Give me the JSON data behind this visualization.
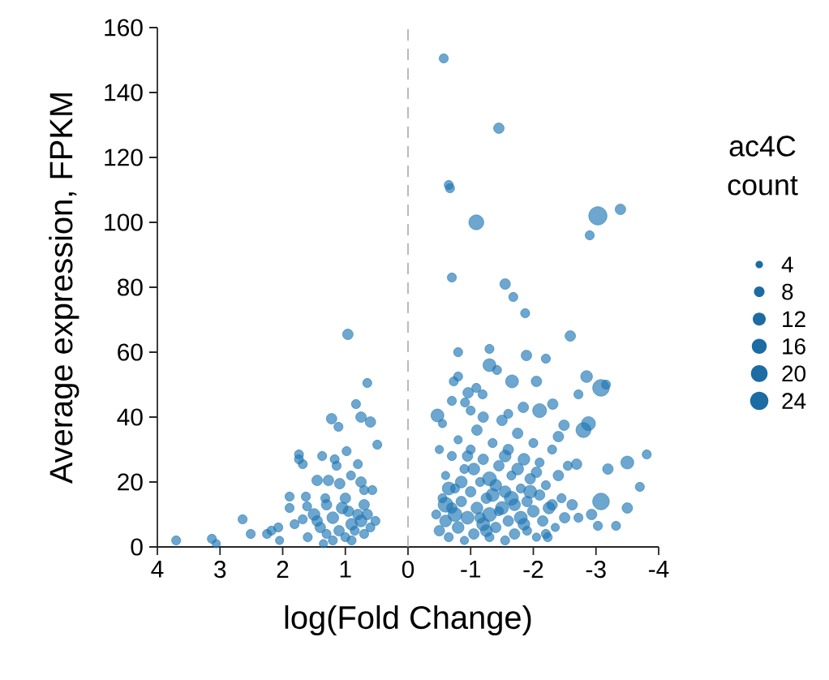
{
  "chart_data": {
    "type": "bubble",
    "xlabel": "log(Fold Change)",
    "ylabel": "Average expression, FPKM",
    "legend_title": "ac4C count",
    "size_legend": [
      4,
      8,
      12,
      16,
      20,
      24
    ],
    "xlim": [
      4,
      -4
    ],
    "xticks": [
      4,
      3,
      2,
      1,
      0,
      -1,
      -2,
      -3,
      -4
    ],
    "ylim": [
      0,
      160
    ],
    "yticks": [
      0,
      20,
      40,
      60,
      80,
      100,
      120,
      140,
      160
    ],
    "ref_lines": [
      {
        "axis": "x",
        "value": 0,
        "color": "#aaaaaa",
        "line_style": "dashed"
      }
    ],
    "series": [
      {
        "color": "#1f77b4",
        "x": [
          3.7,
          3.13,
          3.06,
          2.64,
          2.51,
          2.25,
          2.18,
          2.07,
          2.05,
          1.89,
          1.89,
          1.81,
          1.74,
          1.74,
          1.68,
          1.63,
          1.68,
          1.61,
          1.45,
          1.37,
          1.32,
          1.22,
          1.11,
          1.17,
          1.14,
          1.27,
          1.09,
          0.98,
          0.96,
          0.91,
          0.83,
          0.8,
          0.75,
          0.65,
          0.6,
          0.49,
          0.75,
          0.7,
          0.57,
          0.52,
          1.5,
          1.4,
          1.3,
          1.2,
          1.1,
          1.0,
          0.9,
          0.8,
          0.7,
          1.45,
          1.3,
          1.05,
          0.95,
          0.85,
          0.75,
          0.6,
          1.2,
          0.9,
          1.35,
          1.6,
          1.0,
          0.7,
          0.65,
          -0.57,
          -1.45,
          -0.65,
          -0.67,
          -1.09,
          -3.03,
          -3.39,
          -2.9,
          -0.7,
          -1.55,
          -1.68,
          -1.87,
          -2.59,
          -0.8,
          -1.3,
          -1.3,
          -1.42,
          -1.89,
          -2.2,
          -1.66,
          -2.05,
          -2.85,
          -3.08,
          -3.16,
          -2.72,
          -0.73,
          -0.8,
          -0.96,
          -1.19,
          -1.09,
          -0.7,
          -0.91,
          -0.47,
          -1.84,
          -2.1,
          -2.31,
          -2.49,
          -2.88,
          -2.8,
          -3.81,
          -3.5,
          -3.19,
          -3.7,
          -3.08,
          -3.5,
          -2.93,
          -3.03,
          -3.32,
          -2.69,
          -2.72,
          -2.23,
          -2.62,
          -0.45,
          -0.5,
          -0.55,
          -0.6,
          -0.6,
          -0.65,
          -0.7,
          -0.7,
          -0.75,
          -0.8,
          -0.8,
          -0.85,
          -0.9,
          -0.9,
          -0.95,
          -1.0,
          -1.0,
          -1.05,
          -1.1,
          -1.1,
          -1.15,
          -1.2,
          -1.2,
          -1.25,
          -1.3,
          -1.3,
          -1.35,
          -1.4,
          -1.4,
          -1.45,
          -1.5,
          -1.5,
          -1.55,
          -1.55,
          -1.6,
          -1.6,
          -1.65,
          -1.7,
          -1.7,
          -1.75,
          -1.8,
          -1.8,
          -1.85,
          -1.9,
          -1.9,
          -1.95,
          -2.0,
          -2.0,
          -2.05,
          -2.1,
          -2.1,
          -2.15,
          -2.2,
          -2.25,
          -2.3,
          -2.35,
          -2.4,
          -2.45,
          -2.5,
          -2.55,
          -0.5,
          -0.55,
          -0.65,
          -0.75,
          -0.85,
          -0.95,
          -1.05,
          -1.15,
          -1.25,
          -1.35,
          -1.45,
          -1.55,
          -1.65,
          -1.75,
          -1.85,
          -1.95,
          -2.05,
          -2.2,
          -2.3,
          -2.4,
          -1.2,
          -1.0,
          -1.6,
          -0.6,
          -1.3
        ],
        "values": [
          2,
          2.5,
          1,
          8.5,
          4,
          4,
          5,
          6,
          2,
          15.5,
          12,
          7,
          28.5,
          27,
          25.5,
          15.5,
          8.5,
          12.5,
          20.5,
          28,
          15,
          39.5,
          37,
          27,
          25,
          20.5,
          19.5,
          29.5,
          65.5,
          22,
          44,
          25.5,
          40,
          50.5,
          38.5,
          31.5,
          20,
          17.5,
          17.5,
          8,
          10,
          6,
          4,
          9,
          5,
          3,
          7,
          10,
          4,
          8,
          13,
          12,
          11,
          5,
          8,
          6,
          2,
          2,
          1,
          3,
          15,
          13,
          10,
          150.5,
          129,
          111.5,
          110.5,
          100,
          102,
          104,
          96,
          83,
          81,
          77,
          72,
          65,
          60,
          61,
          56,
          54.5,
          59,
          58,
          51,
          51,
          52.5,
          49,
          50,
          47,
          51,
          52.5,
          47.5,
          47,
          49,
          45,
          44.5,
          40.5,
          43,
          42,
          44,
          37.5,
          38,
          36,
          28.5,
          26,
          24,
          18.5,
          14,
          12,
          10,
          6.5,
          6.5,
          25.5,
          9,
          3,
          13,
          10,
          5,
          15,
          22,
          8,
          3,
          12,
          28,
          18,
          6,
          33,
          14,
          2,
          24,
          9,
          17,
          30,
          4,
          12,
          36,
          20,
          7,
          27,
          15,
          3,
          10,
          32,
          19,
          6,
          25,
          12,
          39,
          2,
          17,
          8,
          30,
          22,
          13,
          4,
          35,
          18,
          9,
          27,
          5,
          14,
          21,
          11,
          32,
          3,
          16,
          26,
          8,
          19,
          12,
          30,
          6,
          22,
          15,
          9,
          25,
          30,
          38,
          18,
          10,
          20,
          28,
          24,
          9,
          5,
          16,
          11,
          28,
          15,
          24,
          7,
          17,
          23,
          4,
          13,
          34,
          40,
          42,
          41,
          13,
          21
        ],
        "sizes": [
          6,
          6,
          5,
          6,
          6,
          6,
          6,
          6,
          5,
          6,
          6,
          6,
          6,
          6,
          6,
          6,
          6,
          6,
          8,
          6,
          6,
          8,
          6,
          6,
          6,
          8,
          8,
          6,
          8,
          6,
          6,
          6,
          8,
          6,
          8,
          6,
          8,
          6,
          6,
          6,
          10,
          8,
          6,
          10,
          8,
          6,
          10,
          8,
          6,
          8,
          8,
          10,
          8,
          6,
          10,
          6,
          6,
          6,
          5,
          6,
          8,
          8,
          8,
          6,
          8,
          6,
          6,
          16,
          24,
          8,
          6,
          6,
          8,
          6,
          6,
          8,
          6,
          6,
          12,
          6,
          8,
          6,
          12,
          8,
          10,
          20,
          6,
          6,
          6,
          6,
          8,
          6,
          6,
          6,
          6,
          12,
          8,
          14,
          8,
          8,
          14,
          16,
          6,
          12,
          8,
          6,
          20,
          8,
          8,
          6,
          6,
          8,
          6,
          6,
          8,
          6,
          8,
          6,
          5,
          10,
          6,
          8,
          6,
          6,
          10,
          5,
          8,
          5,
          6,
          12,
          8,
          6,
          8,
          10,
          8,
          6,
          12,
          8,
          8,
          6,
          14,
          6,
          10,
          8,
          8,
          12,
          8,
          6,
          10,
          8,
          8,
          6,
          10,
          8,
          8,
          6,
          12,
          10,
          6,
          8,
          8,
          10,
          6,
          5,
          8,
          6,
          8,
          6,
          10,
          6,
          5,
          8,
          6,
          8,
          6,
          5,
          5,
          12,
          14,
          10,
          8,
          10,
          8,
          10,
          12,
          6,
          10,
          14,
          10,
          10,
          12,
          8,
          6,
          8,
          8,
          8,
          6,
          6,
          16,
          14
        ]
      }
    ]
  }
}
